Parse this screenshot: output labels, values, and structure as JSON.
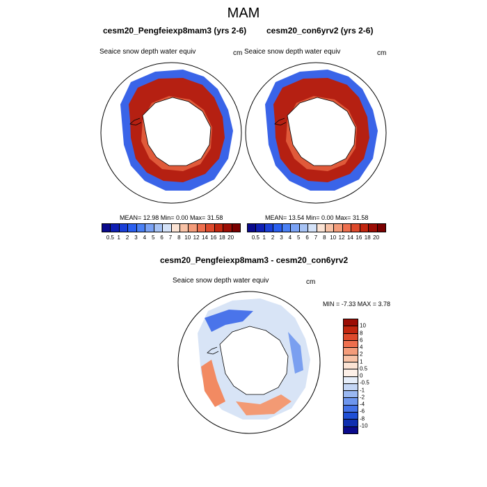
{
  "main_title": "MAM",
  "panels": [
    {
      "title": "cesm20_Pengfeiexp8mam3 (yrs 2-6)",
      "variable": "Seaice snow depth water equiv",
      "units": "cm",
      "stats": "MEAN=  12.98  Min=   0.00  Max=  31.58"
    },
    {
      "title": "cesm20_con6yrv2 (yrs 2-6)",
      "variable": "Seaice snow depth water equiv",
      "units": "cm",
      "stats": "MEAN=  13.54  Min=   0.00  Max=  31.58"
    },
    {
      "title": "cesm20_Pengfeiexp8mam3 - cesm20_con6yrv2",
      "variable": "Seaice snow depth water equiv",
      "units": "cm",
      "stats": "MIN =  -7.33 MAX =   3.78"
    }
  ],
  "colorbar_abs": {
    "labels": [
      "0.5",
      "1",
      "2",
      "3",
      "4",
      "5",
      "6",
      "7",
      "8",
      "10",
      "12",
      "14",
      "16",
      "18",
      "20"
    ],
    "colors": [
      "#0a0a8c",
      "#0f1fb4",
      "#1a3fd8",
      "#2a5ff0",
      "#4a80f5",
      "#7aa2f5",
      "#a7c3f5",
      "#d4e2f8",
      "#fbe3d4",
      "#f8c2a6",
      "#f49c7a",
      "#ee6f4e",
      "#de4a2c",
      "#c2260f",
      "#9c0d05",
      "#7a0000"
    ]
  },
  "colorbar_diff": {
    "labels": [
      "10",
      "8",
      "6",
      "4",
      "2",
      "1",
      "0.5",
      "0",
      "-0.5",
      "-1",
      "-2",
      "-4",
      "-6",
      "-8",
      "-10"
    ],
    "colors": [
      "#9c0d05",
      "#c2260f",
      "#de4a2c",
      "#ee6f4e",
      "#f49c7a",
      "#f8c2a6",
      "#fbe3d4",
      "#fdf0e8",
      "#e6eefa",
      "#c4d6f5",
      "#9ab8f2",
      "#6e96ee",
      "#4472e8",
      "#1f4fd6",
      "#0f2fb0",
      "#0a0a8c"
    ]
  }
}
